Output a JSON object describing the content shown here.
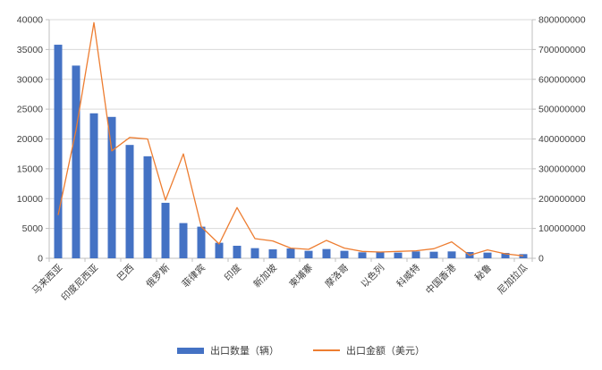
{
  "chart_data": {
    "type": "combo-bar-line",
    "title": "",
    "xlabel": "",
    "ylabel_left": "",
    "ylabel_right": "",
    "grid": true,
    "legend_position": "bottom",
    "categories": [
      "马来西亚",
      "",
      "印度尼西亚",
      "",
      "巴西",
      "",
      "俄罗斯",
      "",
      "菲律宾",
      "",
      "印度",
      "",
      "新加坡",
      "",
      "柬埔寨",
      "",
      "摩洛哥",
      "",
      "以色列",
      "",
      "科威特",
      "",
      "中国香港",
      "",
      "秘鲁",
      "",
      "尼加拉瓜"
    ],
    "series": [
      {
        "name": "出口数量（辆）",
        "type": "bar",
        "axis": "left",
        "color": "#4472C4",
        "values": [
          35800,
          32300,
          24300,
          23700,
          19000,
          17100,
          9300,
          5900,
          5300,
          2600,
          2100,
          1700,
          1500,
          1650,
          1250,
          1550,
          1250,
          1000,
          1000,
          950,
          1150,
          1100,
          1150,
          1050,
          950,
          900,
          700
        ]
      },
      {
        "name": "出口金额（美元）",
        "type": "line",
        "axis": "right",
        "color": "#ED7D31",
        "values": [
          145000000,
          430000000,
          790000000,
          360000000,
          405000000,
          400000000,
          195000000,
          350000000,
          106000000,
          48000000,
          170000000,
          66000000,
          58000000,
          34000000,
          30000000,
          60000000,
          34000000,
          23000000,
          21000000,
          23000000,
          25000000,
          32000000,
          55000000,
          10000000,
          28000000,
          15000000,
          8000000
        ]
      }
    ],
    "left_axis": {
      "min": 0,
      "max": 40000,
      "step": 5000,
      "tick_labels": [
        "0",
        "5000",
        "10000",
        "15000",
        "20000",
        "25000",
        "30000",
        "35000",
        "40000"
      ]
    },
    "right_axis": {
      "min": 0,
      "max": 800000000,
      "step": 100000000,
      "tick_labels": [
        "0",
        "100000000",
        "200000000",
        "300000000",
        "400000000",
        "500000000",
        "600000000",
        "700000000",
        "800000000"
      ]
    }
  },
  "colors": {
    "bar": "#4472C4",
    "line": "#ED7D31",
    "gridline": "#D9D9D9",
    "axis": "#BFBFBF",
    "tick_text": "#404040",
    "background": "#FFFFFF"
  }
}
